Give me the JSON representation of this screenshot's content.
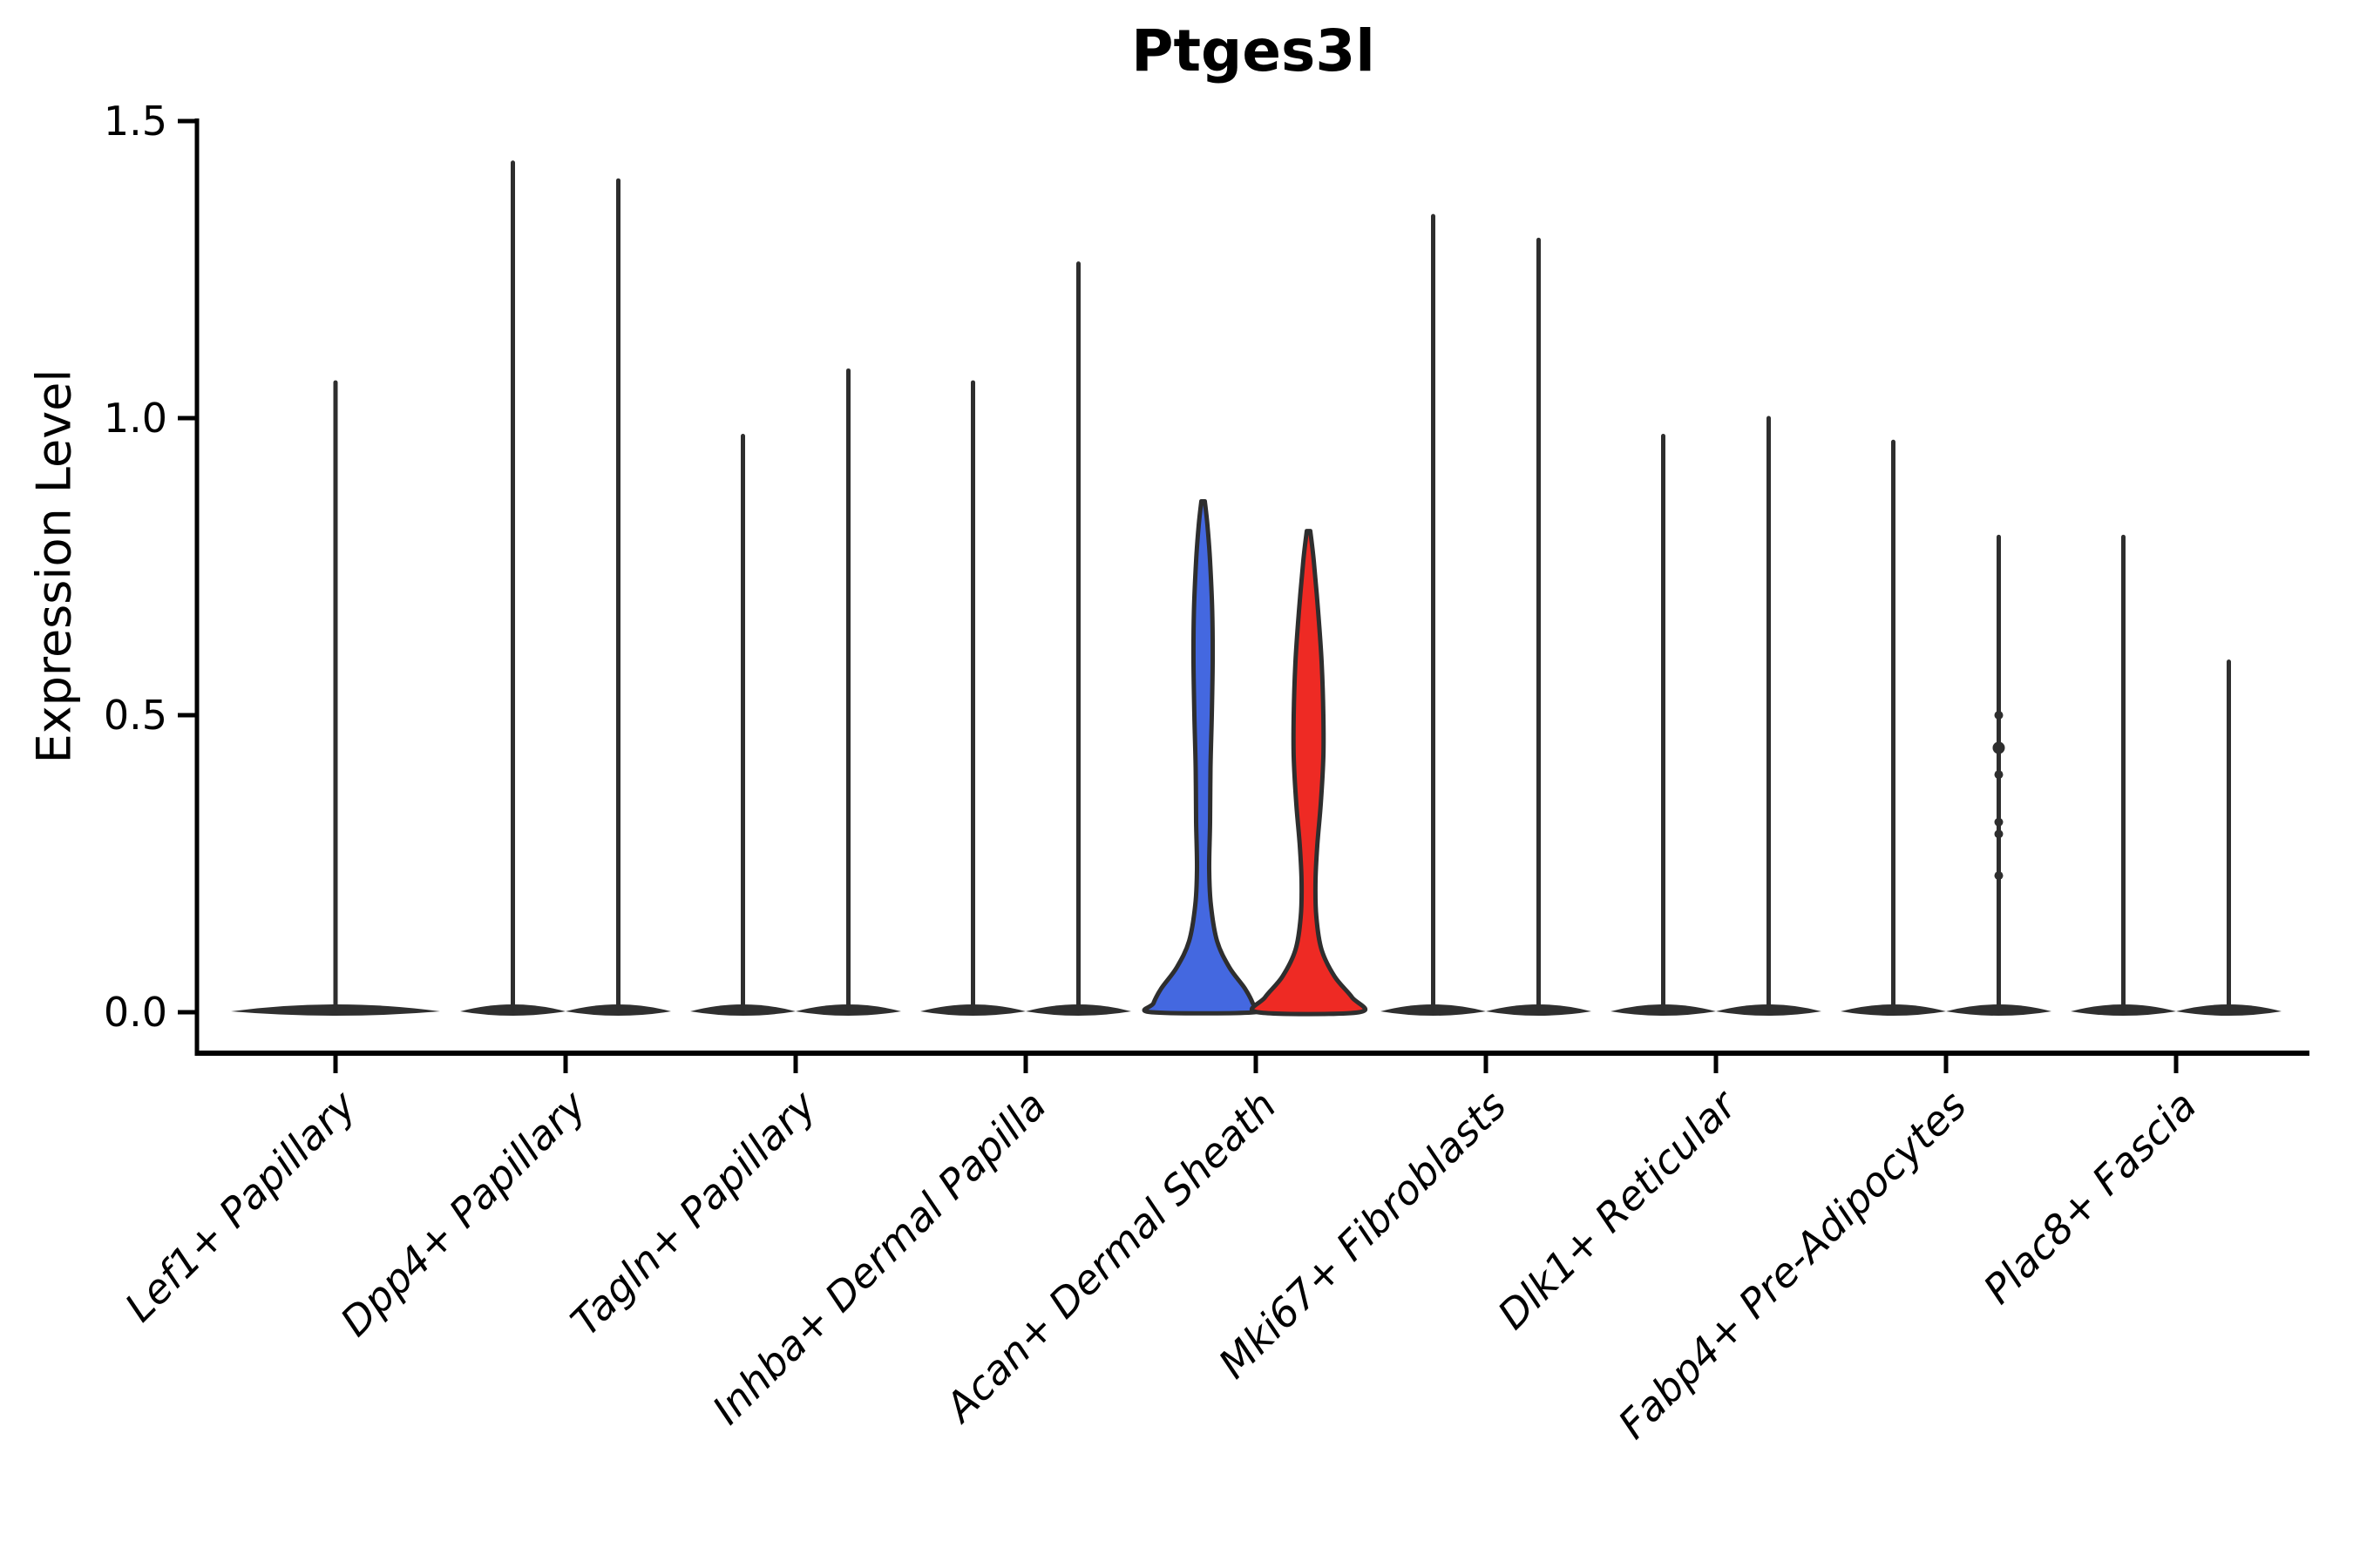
{
  "figure": {
    "title": "Ptges3l",
    "ylabel": "Expression Level"
  },
  "chart_data": {
    "type": "violin",
    "title": "Ptges3l",
    "xlabel": "",
    "ylabel": "Expression Level",
    "ylim": [
      0,
      1.5
    ],
    "yticks": [
      {
        "value": 0.0,
        "label": "0.0"
      },
      {
        "value": 0.5,
        "label": "0.5"
      },
      {
        "value": 1.0,
        "label": "1.0"
      },
      {
        "value": 1.5,
        "label": "1.5"
      }
    ],
    "grid": false,
    "legend": null,
    "categories": [
      "Lef1+ Papillary",
      "Dpp4+ Papillary",
      "Tagln+ Papillary",
      "Inhba+ Dermal Papilla",
      "Acan+ Dermal Sheath",
      "Mki67+ Fibroblasts",
      "Dlk1+ Reticular",
      "Fabp4+ Pre-Adipocytes",
      "Plac8+ Fascia"
    ],
    "colors": {
      "outline": "#2e2e2e",
      "base_fill": "#2f2f2f",
      "spine": "#000000",
      "blue": "#4468E0",
      "red": "#EE2A24",
      "white": "#ffffff"
    },
    "violins": [
      {
        "cat": 0,
        "pos": "single",
        "fill": "white",
        "max": 1.06
      },
      {
        "cat": 1,
        "pos": "left",
        "fill": "white",
        "max": 1.43
      },
      {
        "cat": 1,
        "pos": "right",
        "fill": "white",
        "max": 1.4
      },
      {
        "cat": 2,
        "pos": "left",
        "fill": "white",
        "max": 0.97
      },
      {
        "cat": 2,
        "pos": "right",
        "fill": "white",
        "max": 1.08
      },
      {
        "cat": 3,
        "pos": "left",
        "fill": "white",
        "max": 1.06
      },
      {
        "cat": 3,
        "pos": "right",
        "fill": "white",
        "max": 1.26
      },
      {
        "cat": 4,
        "pos": "left",
        "fill": "blue",
        "max": 0.86,
        "profile": [
          [
            0.86,
            2
          ],
          [
            0.82,
            5
          ],
          [
            0.76,
            8
          ],
          [
            0.675,
            10.5
          ],
          [
            0.59,
            11
          ],
          [
            0.5,
            10
          ],
          [
            0.41,
            8.5
          ],
          [
            0.32,
            8
          ],
          [
            0.24,
            7
          ],
          [
            0.18,
            9
          ],
          [
            0.12,
            16
          ],
          [
            0.076,
            30
          ],
          [
            0.04,
            48
          ],
          [
            0.015,
            57
          ],
          [
            0.0,
            59
          ]
        ]
      },
      {
        "cat": 4,
        "pos": "right",
        "fill": "red",
        "max": 0.81,
        "profile": [
          [
            0.81,
            2
          ],
          [
            0.76,
            6
          ],
          [
            0.675,
            11
          ],
          [
            0.59,
            15
          ],
          [
            0.5,
            17
          ],
          [
            0.43,
            17
          ],
          [
            0.35,
            14
          ],
          [
            0.28,
            10
          ],
          [
            0.22,
            8
          ],
          [
            0.16,
            9
          ],
          [
            0.105,
            15
          ],
          [
            0.06,
            30
          ],
          [
            0.025,
            50
          ],
          [
            0.0,
            58
          ]
        ]
      },
      {
        "cat": 5,
        "pos": "left",
        "fill": "white",
        "max": 1.34
      },
      {
        "cat": 5,
        "pos": "right",
        "fill": "white",
        "max": 1.3
      },
      {
        "cat": 6,
        "pos": "left",
        "fill": "white",
        "max": 0.97
      },
      {
        "cat": 6,
        "pos": "right",
        "fill": "white",
        "max": 1.0
      },
      {
        "cat": 7,
        "pos": "left",
        "fill": "white",
        "max": 0.96
      },
      {
        "cat": 7,
        "pos": "right",
        "fill": "white",
        "max": 0.8,
        "jitter": [
          0.5,
          0.445,
          0.4,
          0.32,
          0.3,
          0.23
        ]
      },
      {
        "cat": 8,
        "pos": "left",
        "fill": "white",
        "max": 0.8
      },
      {
        "cat": 8,
        "pos": "right",
        "fill": "white",
        "max": 0.59
      }
    ]
  }
}
